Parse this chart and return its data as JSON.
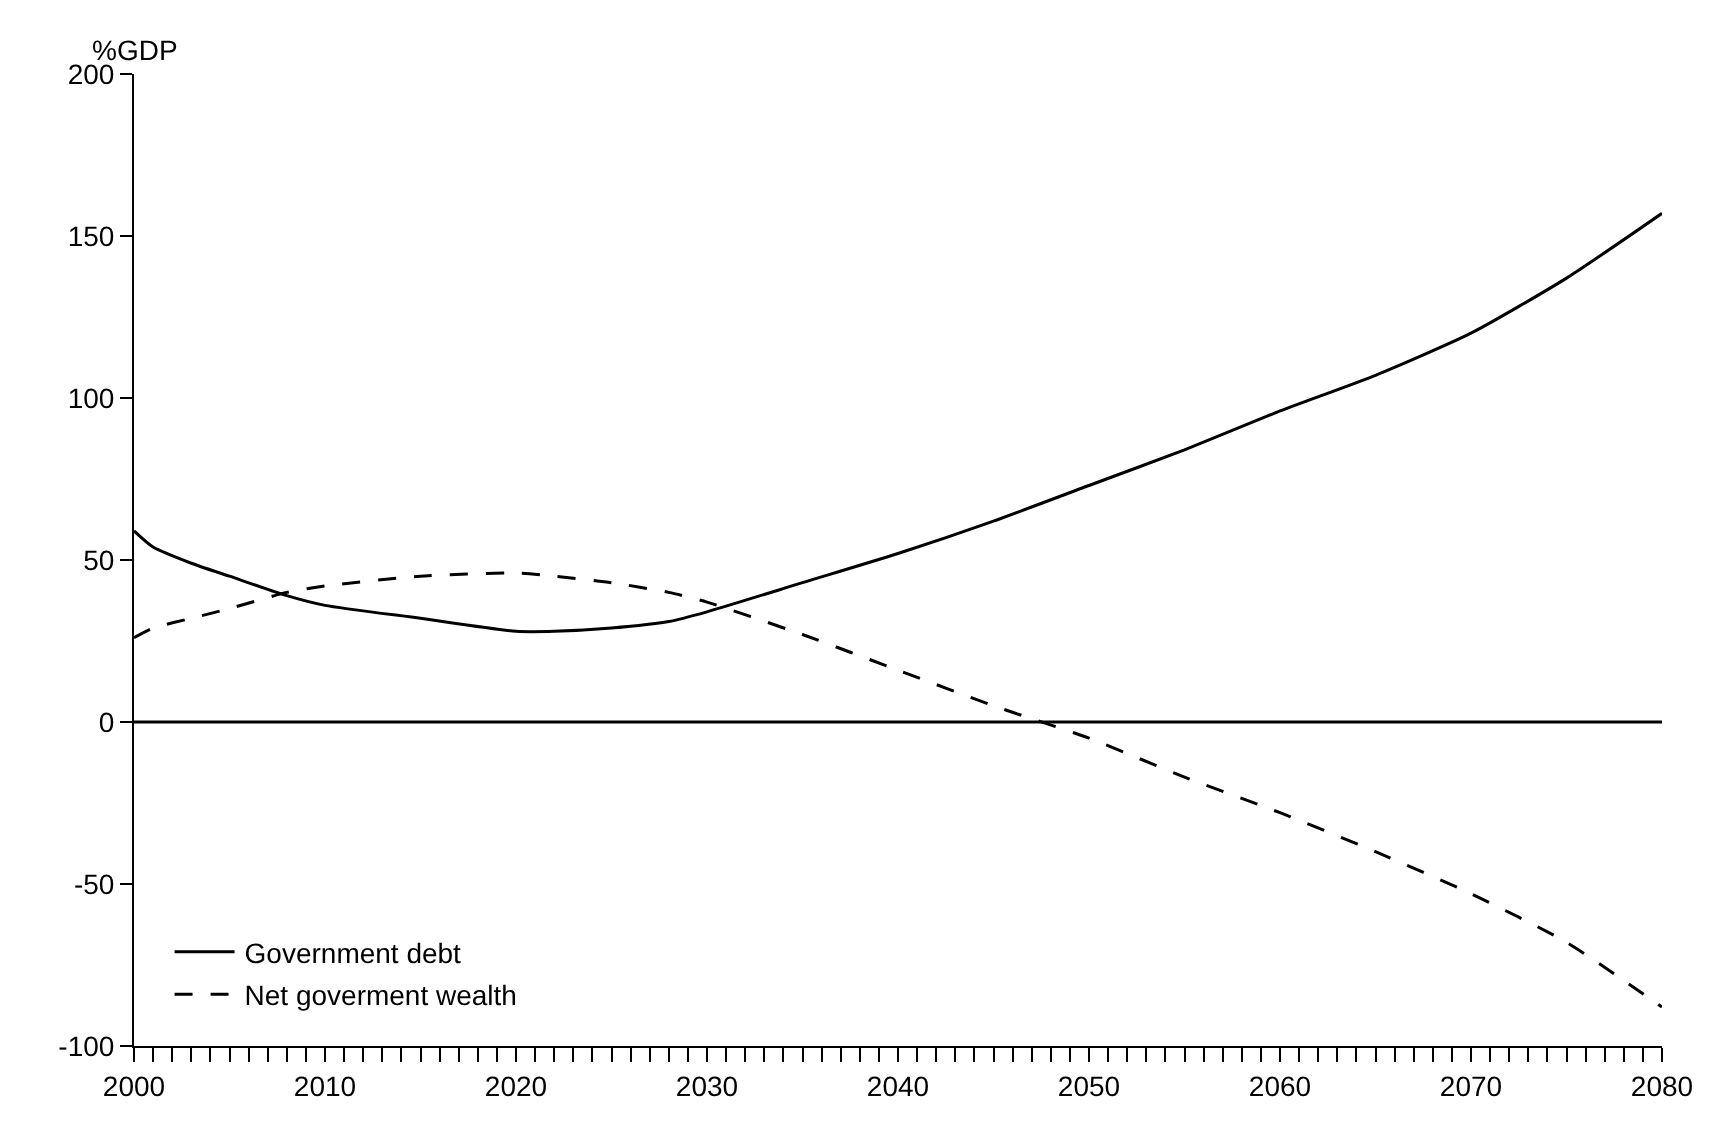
{
  "chart_data": {
    "type": "line",
    "ylabel": "%GDP",
    "x": [
      2000,
      2001,
      2003,
      2005,
      2008,
      2010,
      2015,
      2020,
      2022,
      2025,
      2028,
      2030,
      2035,
      2040,
      2045,
      2050,
      2055,
      2060,
      2065,
      2070,
      2075,
      2080
    ],
    "series": [
      {
        "name": "Government debt",
        "color": "#000000",
        "line_style": "solid",
        "values": [
          59,
          54,
          49,
          45,
          39,
          36,
          32,
          28,
          28,
          29,
          31,
          34,
          43,
          52,
          62,
          73,
          84,
          96,
          107,
          120,
          137,
          157
        ]
      },
      {
        "name": "Net goverment wealth",
        "color": "#000000",
        "line_style": "dashed",
        "values": [
          26,
          29,
          32,
          35,
          40,
          42,
          45,
          46,
          45,
          43,
          40,
          37,
          27,
          16,
          5,
          -5,
          -17,
          -28,
          -40,
          -53,
          -68,
          -88
        ]
      }
    ],
    "xlim": [
      2000,
      2080
    ],
    "ylim": [
      -100,
      200
    ],
    "xticks": [
      2000,
      {
        "value": 2001,
        "label": null
      },
      {
        "value": 2002,
        "label": null
      },
      {
        "value": 2003,
        "label": null
      },
      {
        "value": 2004,
        "label": null
      },
      {
        "value": 2005,
        "label": null
      },
      {
        "value": 2006,
        "label": null
      },
      {
        "value": 2007,
        "label": null
      },
      {
        "value": 2008,
        "label": null
      },
      {
        "value": 2009,
        "label": null
      },
      2010,
      {
        "value": 2011,
        "label": null
      },
      {
        "value": 2012,
        "label": null
      },
      {
        "value": 2013,
        "label": null
      },
      {
        "value": 2014,
        "label": null
      },
      {
        "value": 2015,
        "label": null
      },
      {
        "value": 2016,
        "label": null
      },
      {
        "value": 2017,
        "label": null
      },
      {
        "value": 2018,
        "label": null
      },
      {
        "value": 2019,
        "label": null
      },
      2020,
      {
        "value": 2021,
        "label": null
      },
      {
        "value": 2022,
        "label": null
      },
      {
        "value": 2023,
        "label": null
      },
      {
        "value": 2024,
        "label": null
      },
      {
        "value": 2025,
        "label": null
      },
      {
        "value": 2026,
        "label": null
      },
      {
        "value": 2027,
        "label": null
      },
      {
        "value": 2028,
        "label": null
      },
      {
        "value": 2029,
        "label": null
      },
      2030,
      {
        "value": 2031,
        "label": null
      },
      {
        "value": 2032,
        "label": null
      },
      {
        "value": 2033,
        "label": null
      },
      {
        "value": 2034,
        "label": null
      },
      {
        "value": 2035,
        "label": null
      },
      {
        "value": 2036,
        "label": null
      },
      {
        "value": 2037,
        "label": null
      },
      {
        "value": 2038,
        "label": null
      },
      {
        "value": 2039,
        "label": null
      },
      2040,
      {
        "value": 2041,
        "label": null
      },
      {
        "value": 2042,
        "label": null
      },
      {
        "value": 2043,
        "label": null
      },
      {
        "value": 2044,
        "label": null
      },
      {
        "value": 2045,
        "label": null
      },
      {
        "value": 2046,
        "label": null
      },
      {
        "value": 2047,
        "label": null
      },
      {
        "value": 2048,
        "label": null
      },
      {
        "value": 2049,
        "label": null
      },
      2050,
      {
        "value": 2051,
        "label": null
      },
      {
        "value": 2052,
        "label": null
      },
      {
        "value": 2053,
        "label": null
      },
      {
        "value": 2054,
        "label": null
      },
      {
        "value": 2055,
        "label": null
      },
      {
        "value": 2056,
        "label": null
      },
      {
        "value": 2057,
        "label": null
      },
      {
        "value": 2058,
        "label": null
      },
      {
        "value": 2059,
        "label": null
      },
      2060,
      {
        "value": 2061,
        "label": null
      },
      {
        "value": 2062,
        "label": null
      },
      {
        "value": 2063,
        "label": null
      },
      {
        "value": 2064,
        "label": null
      },
      {
        "value": 2065,
        "label": null
      },
      {
        "value": 2066,
        "label": null
      },
      {
        "value": 2067,
        "label": null
      },
      {
        "value": 2068,
        "label": null
      },
      {
        "value": 2069,
        "label": null
      },
      2070,
      {
        "value": 2071,
        "label": null
      },
      {
        "value": 2072,
        "label": null
      },
      {
        "value": 2073,
        "label": null
      },
      {
        "value": 2074,
        "label": null
      },
      {
        "value": 2075,
        "label": null
      },
      {
        "value": 2076,
        "label": null
      },
      {
        "value": 2077,
        "label": null
      },
      {
        "value": 2078,
        "label": null
      },
      {
        "value": 2079,
        "label": null
      },
      2080
    ],
    "yticks": [
      -100,
      -50,
      0,
      50,
      100,
      150,
      200
    ],
    "ref_lines": [
      {
        "axis": "y",
        "value": 0,
        "color": "#000000",
        "line_style": "solid"
      }
    ],
    "grid": false,
    "legend": "bottom left",
    "marker": "none"
  }
}
